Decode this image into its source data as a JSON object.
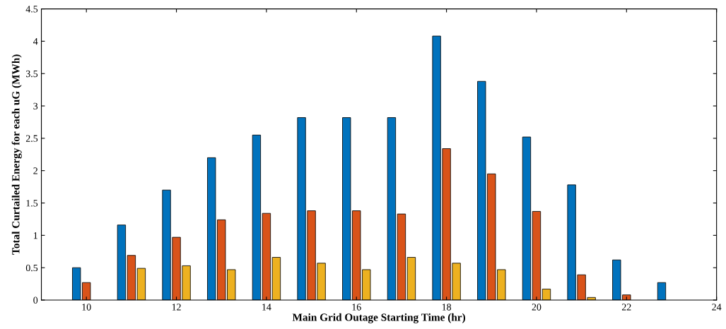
{
  "chart_data": {
    "type": "bar",
    "xlabel": "Main Grid Outage Starting Time (hr)",
    "ylabel": "Total Curtailed Energy for each uG (MWh)",
    "x": [
      10,
      11,
      12,
      13,
      14,
      15,
      16,
      17,
      18,
      19,
      20,
      21,
      22,
      23
    ],
    "series": [
      {
        "color": "#0072bd",
        "values": [
          0.5,
          1.16,
          1.7,
          2.2,
          2.55,
          2.82,
          2.82,
          2.82,
          4.08,
          3.38,
          2.52,
          1.78,
          0.62,
          0.27
        ]
      },
      {
        "color": "#d95319",
        "values": [
          0.27,
          0.69,
          0.97,
          1.24,
          1.34,
          1.38,
          1.38,
          1.33,
          2.34,
          1.95,
          1.37,
          0.39,
          0.08,
          null
        ]
      },
      {
        "color": "#edb120",
        "values": [
          null,
          0.49,
          0.53,
          0.47,
          0.66,
          0.57,
          0.47,
          0.66,
          0.57,
          0.47,
          0.17,
          0.04,
          null,
          null
        ]
      }
    ],
    "xlim": [
      9,
      24
    ],
    "xticks": [
      10,
      12,
      14,
      16,
      18,
      20,
      22,
      24
    ],
    "ylim": [
      0,
      4.5
    ],
    "yticks": [
      0,
      0.5,
      1,
      1.5,
      2,
      2.5,
      3,
      3.5,
      4,
      4.5
    ],
    "grid": false
  }
}
